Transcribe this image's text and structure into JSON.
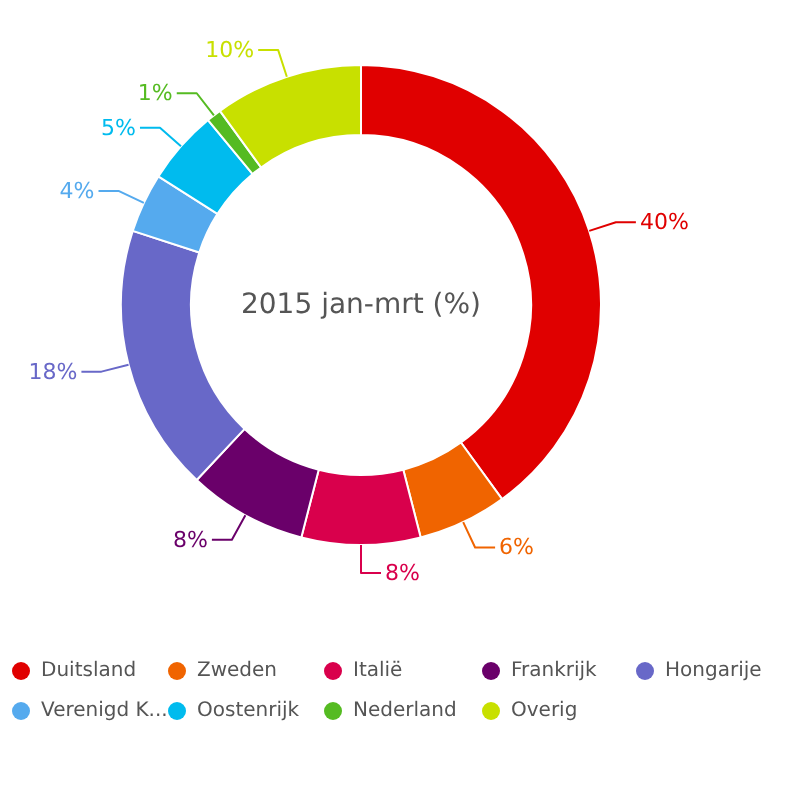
{
  "chart_data": {
    "type": "donut",
    "title": "2015 jan-mrt (%)",
    "categories": [
      "Duitsland",
      "Zweden",
      "Italië",
      "Frankrijk",
      "Hongarije",
      "Verenigd K...",
      "Oostenrijk",
      "Nederland",
      "Overig"
    ],
    "values": [
      40,
      6,
      8,
      8,
      18,
      4,
      5,
      1,
      10
    ],
    "colors": [
      "#e00000",
      "#f06400",
      "#d9004c",
      "#6a006a",
      "#6868c8",
      "#55aaee",
      "#00bbee",
      "#55bb22",
      "#c8e000"
    ],
    "value_labels": [
      "40%",
      "6%",
      "8%",
      "8%",
      "18%",
      "4%",
      "5%",
      "1%",
      "10%"
    ],
    "legend": "bottom"
  }
}
